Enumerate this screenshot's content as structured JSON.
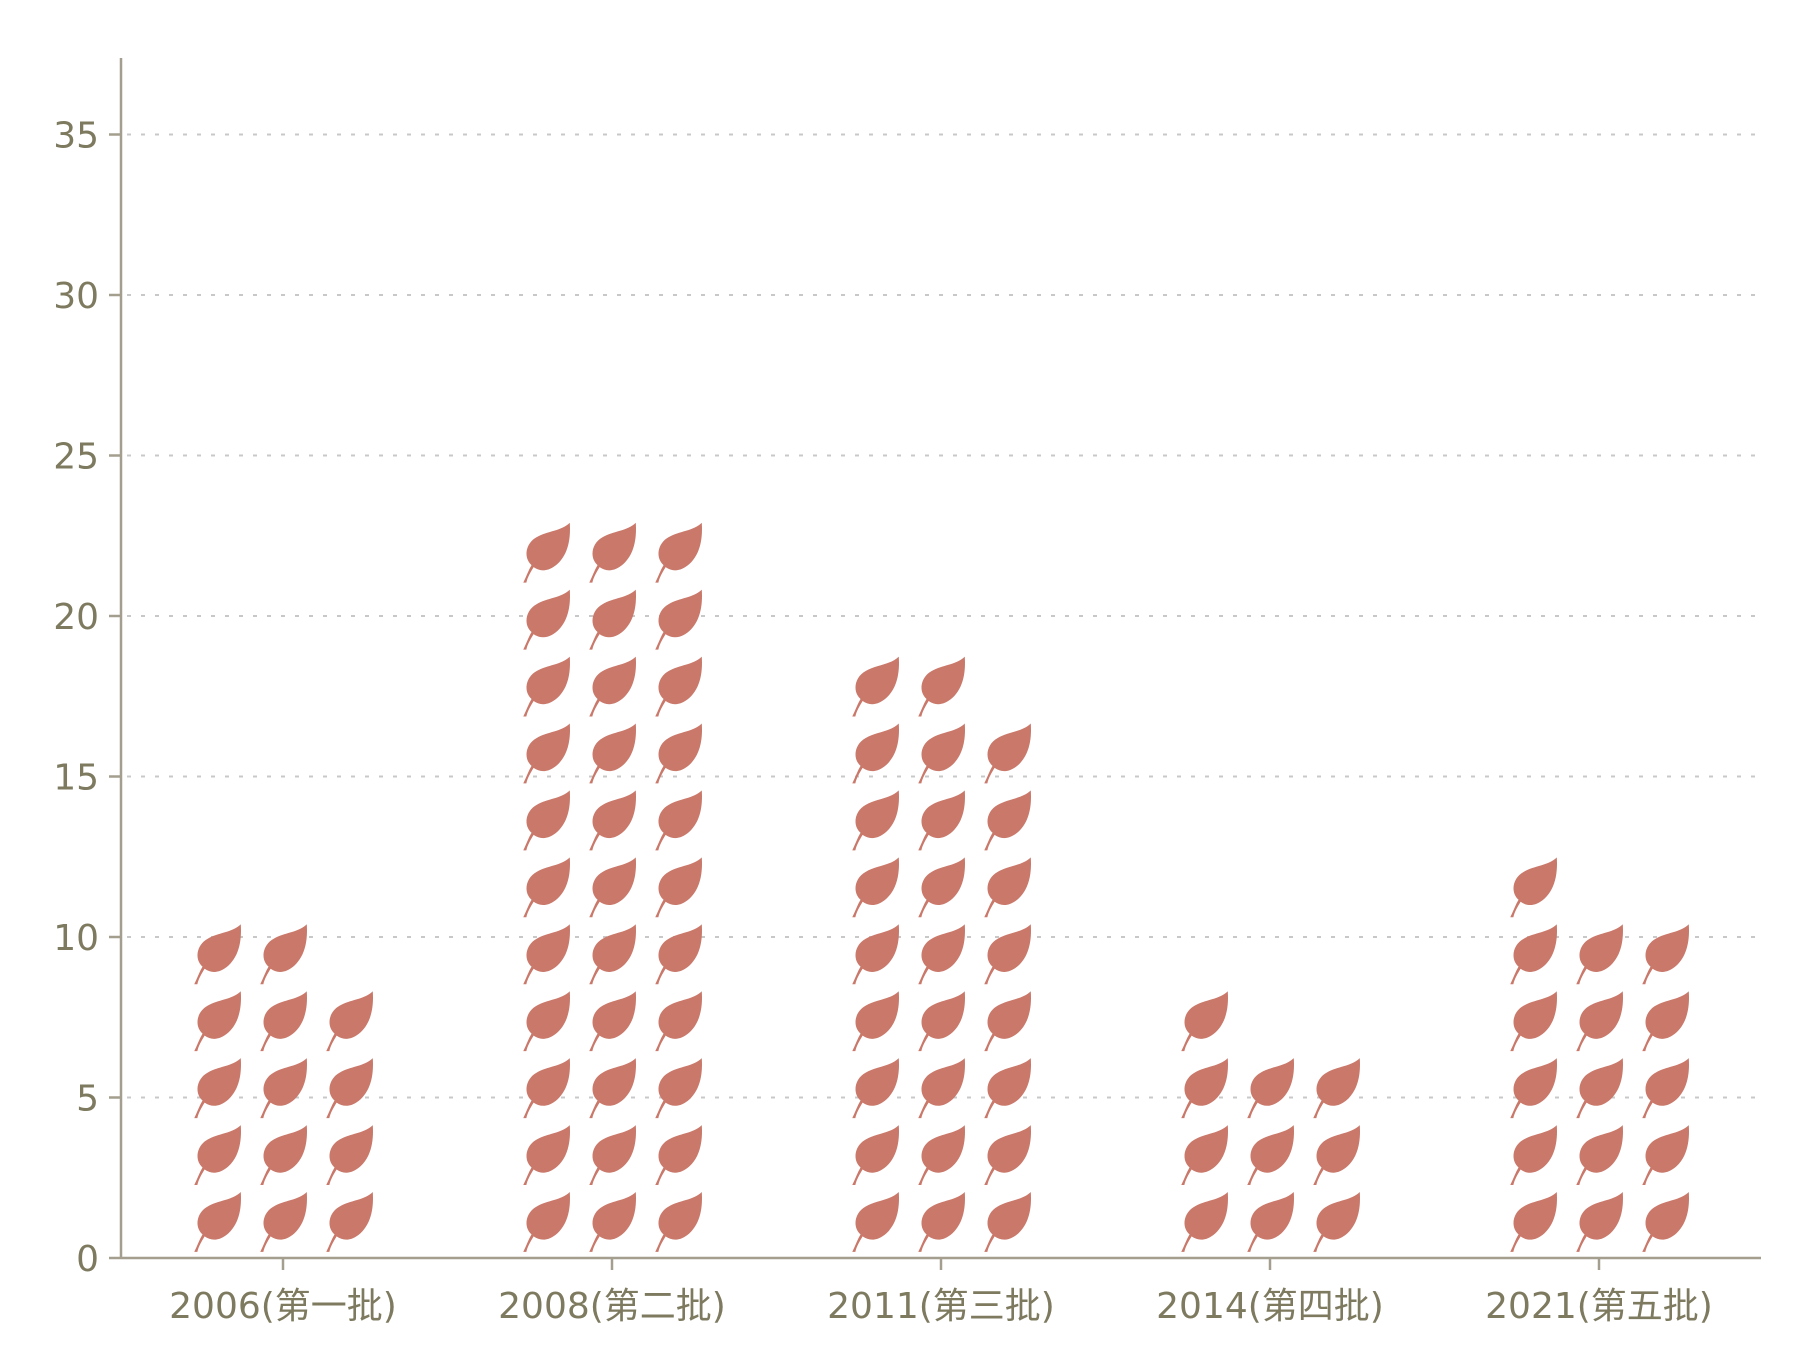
{
  "chart_data": {
    "type": "bar",
    "subtype": "pictogram",
    "icon": "leaf-icon",
    "icon_color": "#c9786a",
    "axis_color": "#a39e8e",
    "grid_color": "#c8c8c8",
    "label_color": "#7d7a5f",
    "grid": true,
    "grid_style": "dotted",
    "categories": [
      "2006(第一批)",
      "2008(第二批)",
      "2011(第三批)",
      "2014(第四批)",
      "2021(第五批)"
    ],
    "values": [
      14,
      33,
      26,
      10,
      16
    ],
    "ylim": [
      0,
      37
    ],
    "yticks": [
      0,
      5,
      10,
      15,
      20,
      25,
      30,
      35
    ],
    "ytick_labels": [
      "0",
      "5",
      "10",
      "15",
      "20",
      "25",
      "30",
      "35"
    ],
    "title": "",
    "xlabel": "",
    "ylabel": ""
  }
}
